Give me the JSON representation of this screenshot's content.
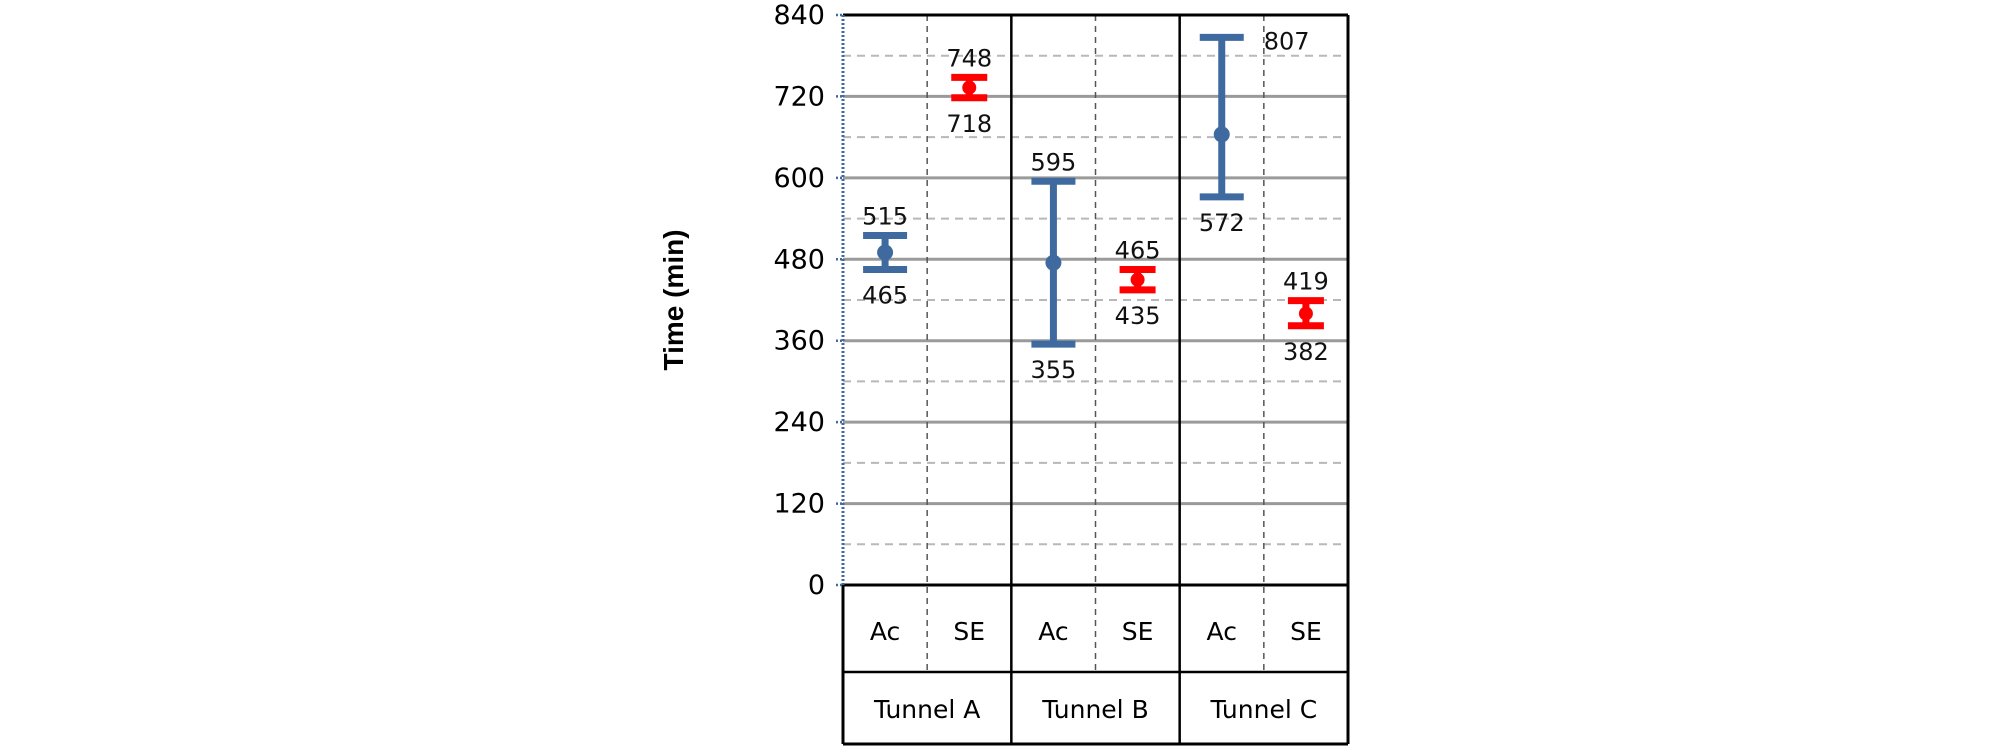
{
  "chart_data": {
    "type": "scatter",
    "ylabel": "Time (min)",
    "ylim": [
      0,
      840
    ],
    "yticks": [
      0,
      120,
      240,
      360,
      480,
      600,
      720,
      840
    ],
    "minor_grid_step": 60,
    "grid": true,
    "groups": [
      "Tunnel A",
      "Tunnel B",
      "Tunnel C"
    ],
    "subcategories": [
      "Ac",
      "SE",
      "Ac",
      "SE",
      "Ac",
      "SE"
    ],
    "colors": {
      "Ac": "#3f6aa0",
      "SE": "#ff0000"
    },
    "points": [
      {
        "group": "Tunnel A",
        "method": "Ac",
        "low": 465,
        "high": 515,
        "mid": 490,
        "low_label": "465",
        "high_label": "515"
      },
      {
        "group": "Tunnel A",
        "method": "SE",
        "low": 718,
        "high": 748,
        "mid": 733,
        "low_label": "718",
        "high_label": "748"
      },
      {
        "group": "Tunnel B",
        "method": "Ac",
        "low": 355,
        "high": 595,
        "mid": 475,
        "low_label": "355",
        "high_label": "595"
      },
      {
        "group": "Tunnel B",
        "method": "SE",
        "low": 435,
        "high": 465,
        "mid": 450,
        "low_label": "435",
        "high_label": "465"
      },
      {
        "group": "Tunnel C",
        "method": "Ac",
        "low": 572,
        "high": 807,
        "mid": 664,
        "low_label": "572",
        "high_label": "807"
      },
      {
        "group": "Tunnel C",
        "method": "SE",
        "low": 382,
        "high": 419,
        "mid": 400,
        "low_label": "382",
        "high_label": "419"
      }
    ]
  }
}
